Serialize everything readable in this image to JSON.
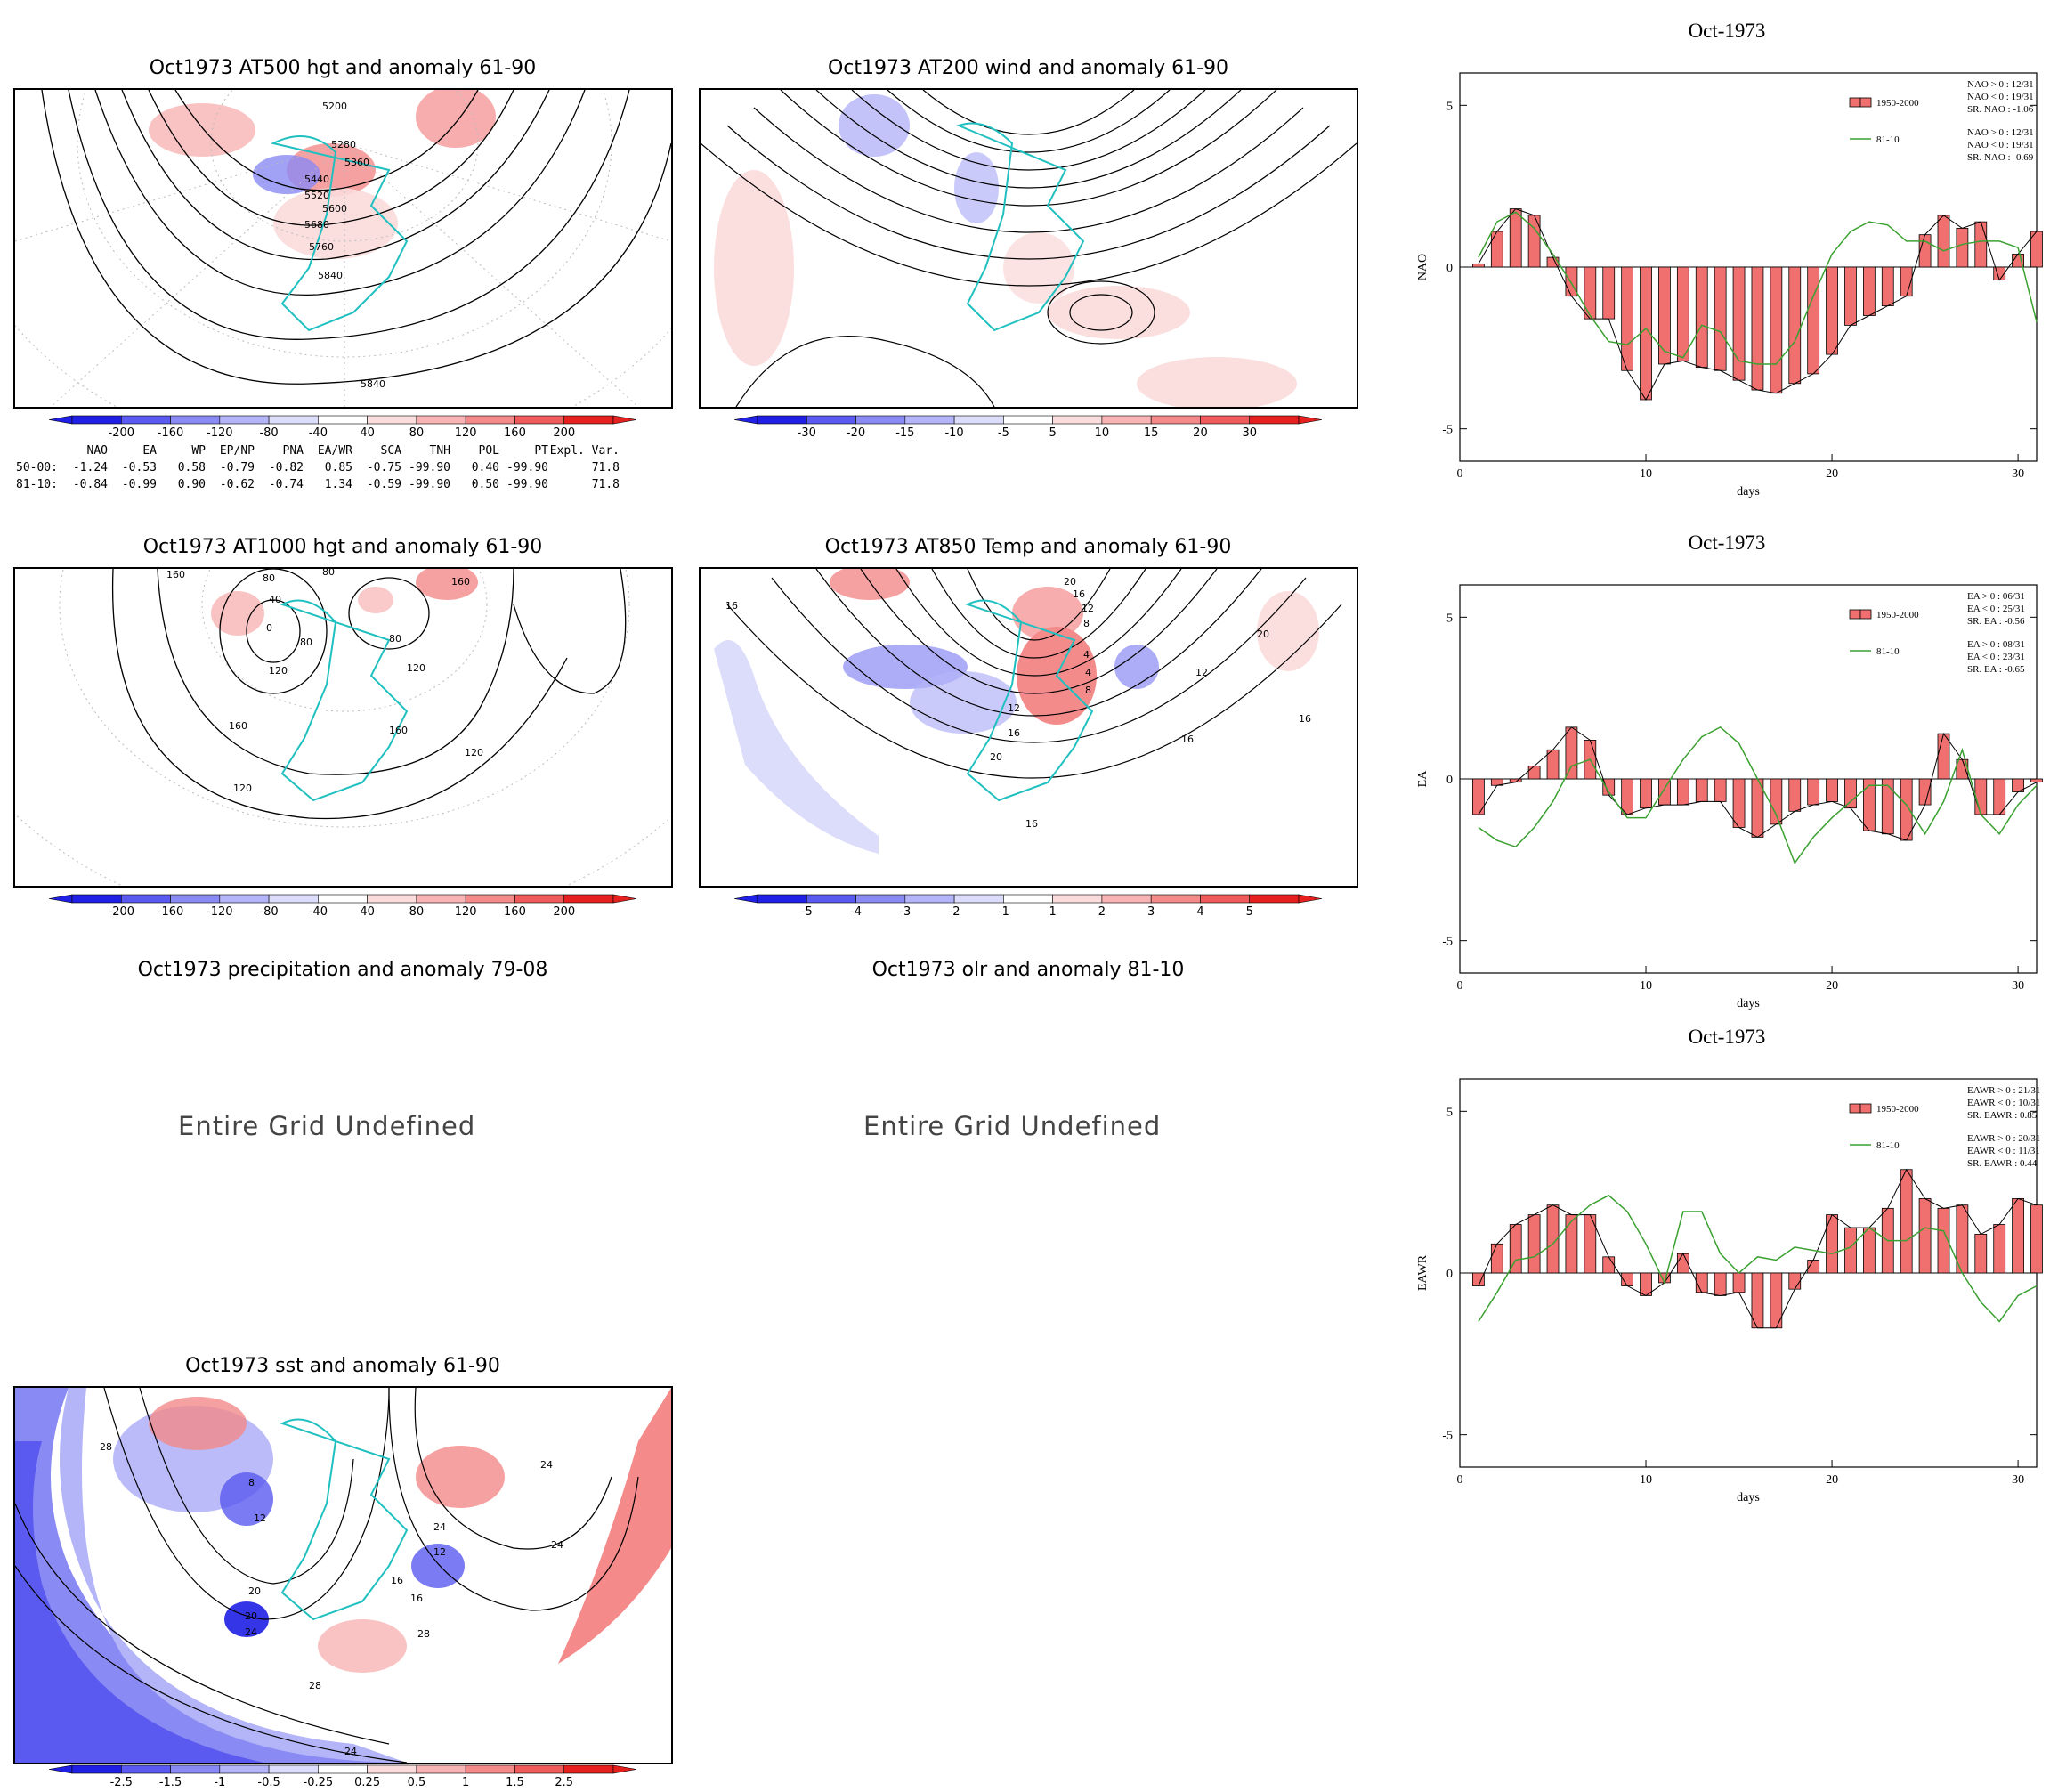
{
  "maps": {
    "at500": {
      "title": "Oct1973 AT500 hgt and anomaly 61-90",
      "contour_labels": [
        "5200",
        "5280",
        "5360",
        "5440",
        "5520",
        "5600",
        "5680",
        "5760",
        "5840",
        "5840"
      ]
    },
    "at200": {
      "title": "Oct1973 AT200 wind and anomaly 61-90"
    },
    "at1000": {
      "title": "Oct1973 AT1000 hgt and anomaly 61-90",
      "contour_labels": [
        "160",
        "80",
        "80",
        "160",
        "40",
        "0",
        "80",
        "120",
        "80",
        "120",
        "160",
        "120",
        "160",
        "120"
      ]
    },
    "at850": {
      "title": "Oct1973 AT850 Temp and anomaly 61-90",
      "contour_labels": [
        "16",
        "20",
        "16",
        "12",
        "8",
        "4",
        "4",
        "8",
        "12",
        "16",
        "20",
        "12",
        "16",
        "16",
        "20",
        "16"
      ]
    },
    "precip": {
      "title": "Oct1973 precipitation and anomaly 79-08",
      "message": "Entire Grid Undefined"
    },
    "olr": {
      "title": "Oct1973 olr and anomaly 81-10",
      "message": "Entire Grid Undefined"
    },
    "sst": {
      "title": "Oct1973 sst and anomaly 61-90",
      "contour_labels": [
        "28",
        "8",
        "12",
        "20",
        "20",
        "24",
        "24",
        "16",
        "28",
        "28",
        "24",
        "24",
        "24",
        "12",
        "16"
      ]
    }
  },
  "colorbars": {
    "hgt": [
      "-200",
      "-160",
      "-120",
      "-80",
      "-40",
      "40",
      "80",
      "120",
      "160",
      "200"
    ],
    "wind": [
      "-30",
      "-20",
      "-15",
      "-10",
      "-5",
      "5",
      "10",
      "15",
      "20",
      "30"
    ],
    "temp": [
      "-5",
      "-4",
      "-3",
      "-2",
      "-1",
      "1",
      "2",
      "3",
      "4",
      "5"
    ],
    "sst": [
      "-2.5",
      "-1.5",
      "-1",
      "-0.5",
      "-0.25",
      "0.25",
      "0.5",
      "1",
      "1.5",
      "2.5"
    ]
  },
  "colors": {
    "neg": [
      "#1f1fe6",
      "#5a5af0",
      "#8a8af4",
      "#b4b4f8",
      "#dcdcfb"
    ],
    "pos": [
      "#fbdcdc",
      "#f8b4b4",
      "#f48a8a",
      "#ef5a5a",
      "#e61f1f"
    ],
    "coast": "#20c0c0",
    "bar": "#f07070",
    "line81": "#3aa030"
  },
  "index_table": {
    "header": [
      "NAO",
      "EA",
      "WP",
      "EP/NP",
      "PNA",
      "EA/WR",
      "SCA",
      "TNH",
      "POL",
      "PT",
      "Expl. Var."
    ],
    "rows": [
      {
        "label": "50-00:",
        "values": [
          "-1.24",
          "-0.53",
          "0.58",
          "-0.79",
          "-0.82",
          "0.85",
          "-0.75",
          "-99.90",
          "0.40",
          "-99.90",
          "71.8"
        ]
      },
      {
        "label": "81-10:",
        "values": [
          "-0.84",
          "-0.99",
          "0.90",
          "-0.62",
          "-0.74",
          "1.34",
          "-0.59",
          "-99.90",
          "0.50",
          "-99.90",
          "71.8"
        ]
      }
    ]
  },
  "chart_data": [
    {
      "type": "bar",
      "title": "Oct-1973",
      "xlabel": "days",
      "ylabel": "NAO",
      "xlim": [
        0,
        31
      ],
      "ylim": [
        -6,
        6
      ],
      "xticks": [
        "0",
        "10",
        "20",
        "30"
      ],
      "yticks": [
        "5",
        "0",
        "-5"
      ],
      "legend": {
        "placement": "top-right",
        "bar_label": "1950-2000",
        "line_label": "81-10",
        "bar_text": [
          "NAO > 0 : 12/31",
          "NAO < 0 : 19/31",
          "SR. NAO : -1.06"
        ],
        "line_text": [
          "NAO > 0 : 12/31",
          "NAO < 0 : 19/31",
          "SR. NAO : -0.69"
        ]
      },
      "x": [
        1,
        2,
        3,
        4,
        5,
        6,
        7,
        8,
        9,
        10,
        11,
        12,
        13,
        14,
        15,
        16,
        17,
        18,
        19,
        20,
        21,
        22,
        23,
        24,
        25,
        26,
        27,
        28,
        29,
        30,
        31
      ],
      "series": [
        {
          "name": "1950-2000",
          "type": "bar",
          "values": [
            0.1,
            1.1,
            1.8,
            1.6,
            0.3,
            -0.9,
            -1.6,
            -1.6,
            -3.2,
            -4.1,
            -3.0,
            -2.9,
            -3.1,
            -3.2,
            -3.5,
            -3.8,
            -3.9,
            -3.6,
            -3.3,
            -2.7,
            -1.8,
            -1.5,
            -1.2,
            -0.9,
            1.0,
            1.6,
            1.2,
            1.4,
            -0.4,
            0.4,
            1.1
          ]
        },
        {
          "name": "81-10",
          "type": "line",
          "values": [
            0.3,
            1.4,
            1.7,
            1.2,
            0.4,
            -0.5,
            -1.5,
            -2.3,
            -2.4,
            -1.9,
            -2.6,
            -2.8,
            -1.8,
            -2.0,
            -2.9,
            -3.0,
            -3.0,
            -2.3,
            -0.9,
            0.4,
            1.1,
            1.4,
            1.3,
            0.8,
            0.8,
            0.5,
            0.7,
            0.8,
            0.8,
            0.6,
            -1.7
          ]
        }
      ]
    },
    {
      "type": "bar",
      "title": "Oct-1973",
      "xlabel": "days",
      "ylabel": "EA",
      "xlim": [
        0,
        31
      ],
      "ylim": [
        -6,
        6
      ],
      "xticks": [
        "0",
        "10",
        "20",
        "30"
      ],
      "yticks": [
        "5",
        "0",
        "-5"
      ],
      "legend": {
        "placement": "top-right",
        "bar_label": "1950-2000",
        "line_label": "81-10",
        "bar_text": [
          "EA > 0 : 06/31",
          "EA < 0 : 25/31",
          "SR. EA : -0.56"
        ],
        "line_text": [
          "EA > 0 : 08/31",
          "EA < 0 : 23/31",
          "SR. EA : -0.65"
        ]
      },
      "x": [
        1,
        2,
        3,
        4,
        5,
        6,
        7,
        8,
        9,
        10,
        11,
        12,
        13,
        14,
        15,
        16,
        17,
        18,
        19,
        20,
        21,
        22,
        23,
        24,
        25,
        26,
        27,
        28,
        29,
        30,
        31
      ],
      "series": [
        {
          "name": "1950-2000",
          "type": "bar",
          "values": [
            -1.1,
            -0.2,
            -0.1,
            0.4,
            0.9,
            1.6,
            1.2,
            -0.5,
            -1.1,
            -0.9,
            -0.8,
            -0.8,
            -0.7,
            -0.7,
            -1.5,
            -1.8,
            -1.4,
            -1.0,
            -0.8,
            -0.7,
            -0.9,
            -1.6,
            -1.7,
            -1.9,
            -0.8,
            1.4,
            0.6,
            -1.1,
            -1.1,
            -0.4,
            -0.1
          ]
        },
        {
          "name": "81-10",
          "type": "line",
          "values": [
            -1.5,
            -1.9,
            -2.1,
            -1.5,
            -0.7,
            0.4,
            0.6,
            -0.4,
            -1.2,
            -1.2,
            -0.3,
            0.6,
            1.3,
            1.6,
            1.1,
            0.0,
            -1.1,
            -2.6,
            -1.8,
            -1.2,
            -0.7,
            -0.2,
            -0.2,
            -0.8,
            -1.7,
            -0.7,
            0.9,
            -1.1,
            -1.7,
            -0.8,
            -0.2
          ]
        }
      ]
    },
    {
      "type": "bar",
      "title": "Oct-1973",
      "xlabel": "days",
      "ylabel": "EAWR",
      "xlim": [
        0,
        31
      ],
      "ylim": [
        -6,
        6
      ],
      "xticks": [
        "0",
        "10",
        "20",
        "30"
      ],
      "yticks": [
        "5",
        "0",
        "-5"
      ],
      "legend": {
        "placement": "top-right",
        "bar_label": "1950-2000",
        "line_label": "81-10",
        "bar_text": [
          "EAWR > 0 : 21/31",
          "EAWR < 0 : 10/31",
          "SR. EAWR : 0.85"
        ],
        "line_text": [
          "EAWR > 0 : 20/31",
          "EAWR < 0 : 11/31",
          "SR. EAWR : 0.44"
        ]
      },
      "x": [
        1,
        2,
        3,
        4,
        5,
        6,
        7,
        8,
        9,
        10,
        11,
        12,
        13,
        14,
        15,
        16,
        17,
        18,
        19,
        20,
        21,
        22,
        23,
        24,
        25,
        26,
        27,
        28,
        29,
        30,
        31
      ],
      "series": [
        {
          "name": "1950-2000",
          "type": "bar",
          "values": [
            -0.4,
            0.9,
            1.5,
            1.8,
            2.1,
            1.8,
            1.8,
            0.5,
            -0.4,
            -0.7,
            -0.3,
            0.6,
            -0.6,
            -0.7,
            -0.6,
            -1.7,
            -1.7,
            -0.5,
            0.4,
            1.8,
            1.4,
            1.4,
            2.0,
            3.2,
            2.3,
            2.0,
            2.1,
            1.2,
            1.5,
            2.3,
            2.1
          ]
        },
        {
          "name": "81-10",
          "type": "line",
          "values": [
            -1.5,
            -0.6,
            0.4,
            0.5,
            0.9,
            1.6,
            2.1,
            2.4,
            1.9,
            0.9,
            -0.3,
            1.9,
            1.9,
            0.6,
            0.0,
            0.5,
            0.4,
            0.8,
            0.7,
            0.6,
            0.8,
            1.4,
            1.0,
            1.0,
            1.4,
            1.3,
            0.0,
            -0.9,
            -1.5,
            -0.7,
            -0.4
          ]
        }
      ]
    }
  ]
}
